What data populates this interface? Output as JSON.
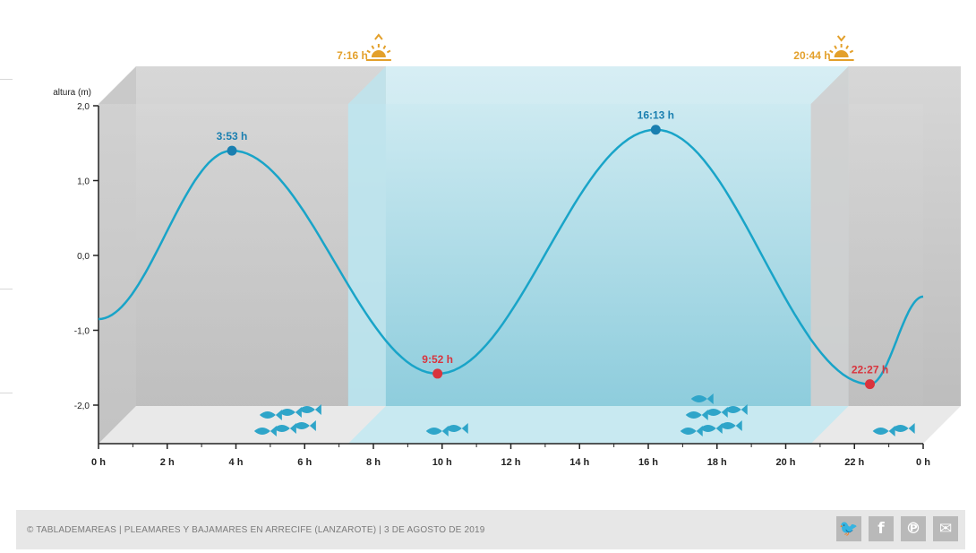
{
  "chart_data": {
    "type": "line",
    "ylabel": "altura (m)",
    "y_ticks": [
      "2,0",
      "1,0",
      "0,0",
      "-1,0",
      "-2,0"
    ],
    "y_tick_values": [
      2,
      1,
      0,
      -1,
      -2
    ],
    "ylim": [
      -2.5,
      2.0
    ],
    "x_ticks": [
      "0 h",
      "2 h",
      "4 h",
      "6 h",
      "8 h",
      "10 h",
      "12 h",
      "14 h",
      "16 h",
      "18 h",
      "20 h",
      "22 h",
      "0 h"
    ],
    "x_tick_values": [
      0,
      2,
      4,
      6,
      8,
      10,
      12,
      14,
      16,
      18,
      20,
      22,
      24
    ],
    "xlim": [
      0,
      24
    ],
    "series": [
      {
        "points": [
          {
            "x": 0,
            "y": -0.85
          },
          {
            "x": 3.883,
            "y": 1.4
          },
          {
            "x": 9.867,
            "y": -1.58
          },
          {
            "x": 16.217,
            "y": 1.68
          },
          {
            "x": 22.45,
            "y": -1.72
          },
          {
            "x": 24,
            "y": -0.55
          }
        ]
      }
    ],
    "extremes": [
      {
        "label": "3:53 h",
        "x": 3.883,
        "y": 1.4,
        "kind": "high",
        "color": "#1a7fb0"
      },
      {
        "label": "9:52 h",
        "x": 9.867,
        "y": -1.58,
        "kind": "low",
        "color": "#d9343d"
      },
      {
        "label": "16:13 h",
        "x": 16.217,
        "y": 1.68,
        "kind": "high",
        "color": "#1a7fb0"
      },
      {
        "label": "22:27 h",
        "x": 22.45,
        "y": -1.72,
        "kind": "low",
        "color": "#d9343d"
      }
    ],
    "sun": [
      {
        "label": "7:16 h",
        "x": 7.267,
        "kind": "sunrise"
      },
      {
        "label": "20:44 h",
        "x": 20.733,
        "kind": "sunset"
      }
    ],
    "fish_groups": [
      {
        "x": 5.0,
        "count": 6
      },
      {
        "x": 10.0,
        "count": 2
      },
      {
        "x": 17.4,
        "count": 7
      },
      {
        "x": 23.0,
        "count": 2
      }
    ],
    "colors": {
      "curve": "#19a4c8",
      "high": "#1a7fb0",
      "low": "#d9343d",
      "sun": "#e3a02b",
      "day": "#a7dbe6",
      "night": "#c4c4c4",
      "fish": "#2fa5c9"
    }
  },
  "footer": {
    "text": "© TABLADEMAREAS | PLEAMARES Y BAJAMARES EN ARRECIFE (LANZAROTE) | 3 DE AGOSTO DE 2019",
    "social": [
      {
        "name": "twitter-icon",
        "glyph": "🐦"
      },
      {
        "name": "facebook-icon",
        "glyph": "f"
      },
      {
        "name": "pinterest-icon",
        "glyph": "℗"
      },
      {
        "name": "email-icon",
        "glyph": "✉"
      }
    ]
  }
}
